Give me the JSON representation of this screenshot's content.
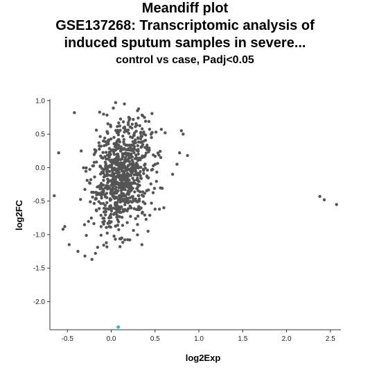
{
  "chart_data": {
    "type": "scatter",
    "title_lines": [
      "Meandiff plot",
      "GSE137268: Transcriptomic analysis of",
      "induced sputum samples in severe..."
    ],
    "subtitle": "control vs case, Padj<0.05",
    "xlabel": "log2Exp",
    "ylabel": "log2FC",
    "xlim": [
      -0.7,
      2.62
    ],
    "ylim": [
      -2.42,
      1.02
    ],
    "x_ticks": [
      -0.5,
      0.0,
      0.5,
      1.0,
      1.5,
      2.0,
      2.5
    ],
    "x_tick_labels": [
      "-0.5",
      "0.0",
      "0.5",
      "1.0",
      "1.5",
      "2.0",
      "2.5"
    ],
    "y_ticks": [
      1.0,
      0.5,
      0.0,
      -0.5,
      -1.0,
      -1.5,
      -2.0
    ],
    "y_tick_labels": [
      "1.0",
      "0.5",
      "0.0",
      "-0.5",
      "-1.0",
      "-1.5",
      "-2.0"
    ],
    "grid": false,
    "legend": "none",
    "colors": {
      "points": "#555555",
      "highlight": "#1fb5e8"
    },
    "cluster": {
      "count": 860,
      "x_range": [
        -0.35,
        0.85
      ],
      "y_range": [
        -1.35,
        0.95
      ]
    },
    "series": [
      {
        "values": [
          [
            -0.42,
            0.82
          ],
          [
            -0.6,
            0.22
          ],
          [
            -0.65,
            -0.42
          ],
          [
            -0.53,
            -0.88
          ],
          [
            -0.55,
            -0.92
          ],
          [
            -0.48,
            -1.15
          ],
          [
            -0.38,
            -1.25
          ],
          [
            -0.3,
            -1.32
          ],
          [
            -0.22,
            -1.37
          ],
          [
            -0.18,
            -1.28
          ],
          [
            0.05,
            0.97
          ],
          [
            0.15,
            0.95
          ],
          [
            0.3,
            0.85
          ],
          [
            0.8,
            0.55
          ],
          [
            0.82,
            0.5
          ],
          [
            0.87,
            0.18
          ],
          [
            0.78,
            0.22
          ],
          [
            0.35,
            -1.15
          ],
          [
            0.42,
            -0.95
          ],
          [
            0.55,
            -0.62
          ],
          [
            0.6,
            -0.6
          ],
          [
            0.5,
            -0.62
          ],
          [
            0.12,
            -1.05
          ],
          [
            0.1,
            -1.18
          ],
          [
            0.3,
            -0.85
          ],
          [
            0.75,
            0.05
          ],
          [
            0.7,
            -0.1
          ],
          [
            0.2,
            0.75
          ],
          [
            2.38,
            -0.43
          ],
          [
            2.43,
            -0.48
          ],
          [
            2.57,
            -0.55
          ]
        ]
      },
      {
        "values": [
          [
            0.08,
            -2.38
          ]
        ]
      }
    ]
  }
}
